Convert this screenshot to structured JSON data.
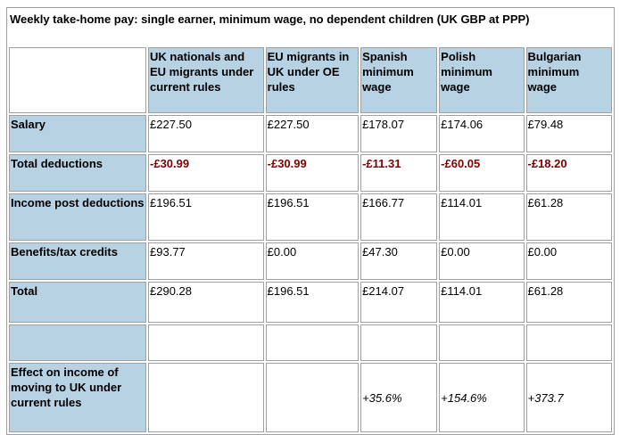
{
  "title": "Weekly take-home pay: single earner, minimum wage, no dependent children (UK GBP at PPP)",
  "columns": [
    "",
    "UK nationals and EU migrants under current rules",
    "EU migrants in UK under OE rules",
    "Spanish minimum wage",
    "Polish minimum wage",
    "Bulgarian minimum wage"
  ],
  "rows": [
    {
      "label": "Salary",
      "values": [
        "£227.50",
        "£227.50",
        "£178.07",
        "£174.06",
        "£79.48"
      ]
    },
    {
      "label": "Total deductions",
      "values": [
        "-£30.99",
        "-£30.99",
        "-£11.31",
        "-£60.05",
        "-£18.20"
      ]
    },
    {
      "label": "Income post deductions",
      "values": [
        "£196.51",
        "£196.51",
        "£166.77",
        "£114.01",
        "£61.28"
      ]
    },
    {
      "label": "Benefits/tax credits",
      "values": [
        "£93.77",
        "£0.00",
        "£47.30",
        "£0.00",
        "£0.00"
      ]
    },
    {
      "label": "Total",
      "values": [
        "£290.28",
        "£196.51",
        "£214.07",
        "£114.01",
        "£61.28"
      ]
    },
    {
      "label": "",
      "values": [
        "",
        "",
        "",
        "",
        ""
      ]
    },
    {
      "label": "Effect on income of moving to UK under current rules",
      "values": [
        "",
        "",
        "+35.6%",
        "+154.6%",
        "+373.7"
      ]
    }
  ],
  "colors": {
    "header_bg": "#b7d2e3",
    "negative": "#800000"
  }
}
